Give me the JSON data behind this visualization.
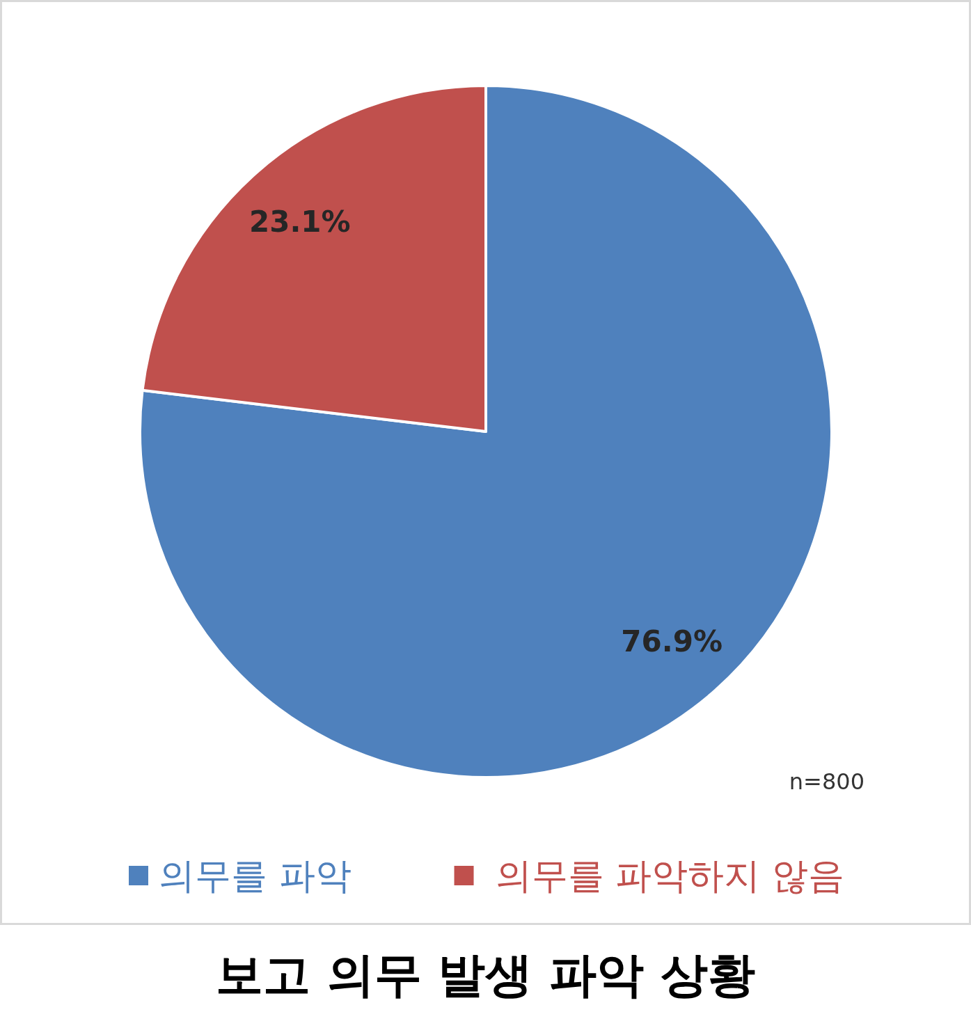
{
  "chart_data": {
    "type": "pie",
    "title": "보고 의무 발생 파악 상황",
    "categories": [
      "의무를 파악",
      "의무를 파악하지 않음"
    ],
    "values": [
      76.9,
      23.1
    ],
    "colors": [
      "#4f81bd",
      "#c0504d"
    ],
    "value_labels": [
      "76.9%",
      "23.1%"
    ],
    "legend": "bottom",
    "annotations": [
      "n=800"
    ]
  }
}
